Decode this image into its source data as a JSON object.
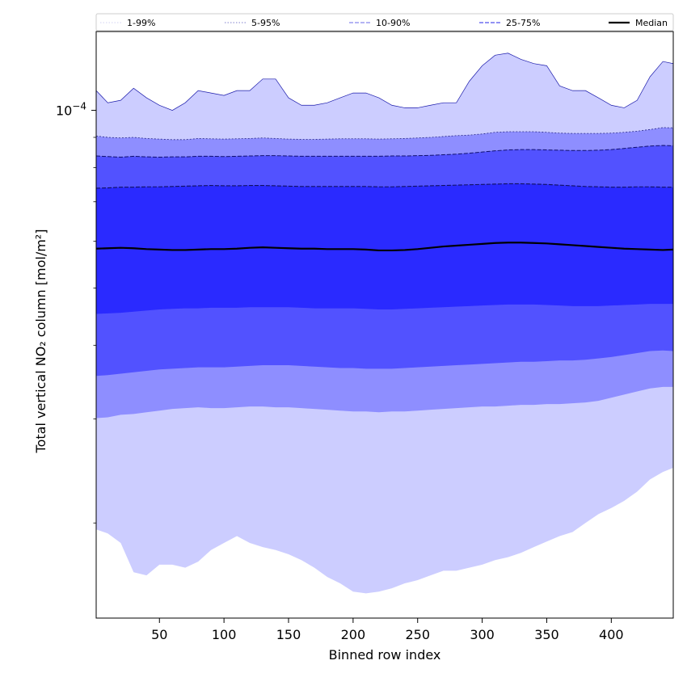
{
  "chart_data": {
    "type": "area",
    "title": "",
    "xlabel": "Binned row index",
    "ylabel": "Total vertical NO₂ column [mol/m²]",
    "y_scale": "log",
    "xlim": [
      1,
      448
    ],
    "ylim": [
      1.38e-05,
      0.000136
    ],
    "grid": false,
    "legend_position": "top (above plot, single row)",
    "x_ticks": [
      50,
      100,
      150,
      200,
      250,
      300,
      350,
      400
    ],
    "x_tick_labels": [
      "50",
      "100",
      "150",
      "200",
      "250",
      "300",
      "350",
      "400"
    ],
    "y_ticks": [
      0.0001
    ],
    "y_tick_labels_base": "10",
    "y_tick_labels_exponent": "−4",
    "y_minor_ticks": [
      2e-05,
      3e-05,
      4e-05,
      5e-05,
      6e-05,
      7e-05,
      8e-05,
      9e-05
    ],
    "legend": [
      {
        "label": "1-99%",
        "style": "dotted",
        "color": "#dadaf5"
      },
      {
        "label": "5-95%",
        "style": "dotted",
        "color": "#9a9ad8"
      },
      {
        "label": "10-90%",
        "style": "dashed",
        "color": "#8888ee"
      },
      {
        "label": "25-75%",
        "style": "dashed",
        "color": "#5050ee"
      },
      {
        "label": "Median",
        "style": "solid",
        "color": "#000000"
      }
    ],
    "colors": {
      "band_1_99": "#cccdff",
      "band_5_95": "#8e8eff",
      "band_10_90": "#5252ff",
      "band_25_75": "#2a2aff",
      "median": "#000000",
      "upper_edge_line": "#1a1aaa"
    },
    "x": [
      1,
      10,
      20,
      30,
      40,
      50,
      60,
      70,
      80,
      90,
      100,
      110,
      120,
      130,
      140,
      150,
      160,
      170,
      180,
      190,
      200,
      210,
      220,
      230,
      240,
      250,
      260,
      270,
      280,
      290,
      300,
      310,
      320,
      330,
      340,
      350,
      360,
      370,
      380,
      390,
      400,
      410,
      420,
      430,
      440,
      448
    ],
    "series": [
      {
        "name": "1-99%",
        "lower": [
          1.95e-05,
          1.92e-05,
          1.85e-05,
          1.65e-05,
          1.63e-05,
          1.7e-05,
          1.7e-05,
          1.68e-05,
          1.72e-05,
          1.8e-05,
          1.85e-05,
          1.9e-05,
          1.85e-05,
          1.82e-05,
          1.8e-05,
          1.77e-05,
          1.73e-05,
          1.68e-05,
          1.62e-05,
          1.58e-05,
          1.53e-05,
          1.52e-05,
          1.53e-05,
          1.55e-05,
          1.58e-05,
          1.6e-05,
          1.63e-05,
          1.66e-05,
          1.66e-05,
          1.68e-05,
          1.7e-05,
          1.73e-05,
          1.75e-05,
          1.78e-05,
          1.82e-05,
          1.86e-05,
          1.9e-05,
          1.93e-05,
          2e-05,
          2.07e-05,
          2.12e-05,
          2.18e-05,
          2.26e-05,
          2.37e-05,
          2.44e-05,
          2.48e-05
        ],
        "upper": [
          0.000108,
          0.000103,
          0.000104,
          0.000109,
          0.000105,
          0.000102,
          0.0001,
          0.000103,
          0.000108,
          0.000107,
          0.000106,
          0.000108,
          0.000108,
          0.000113,
          0.000113,
          0.000105,
          0.000102,
          0.000102,
          0.000103,
          0.000105,
          0.000107,
          0.000107,
          0.000105,
          0.000102,
          0.000101,
          0.000101,
          0.000102,
          0.000103,
          0.000103,
          0.000112,
          0.000119,
          0.000124,
          0.000125,
          0.000122,
          0.00012,
          0.000119,
          0.00011,
          0.000108,
          0.000108,
          0.000105,
          0.000102,
          0.000101,
          0.000104,
          0.000114,
          0.000121,
          0.00012
        ]
      },
      {
        "name": "5-95%",
        "lower": [
          3.01e-05,
          3.02e-05,
          3.05e-05,
          3.06e-05,
          3.08e-05,
          3.1e-05,
          3.12e-05,
          3.13e-05,
          3.14e-05,
          3.13e-05,
          3.13e-05,
          3.14e-05,
          3.15e-05,
          3.15e-05,
          3.14e-05,
          3.14e-05,
          3.13e-05,
          3.12e-05,
          3.11e-05,
          3.1e-05,
          3.09e-05,
          3.09e-05,
          3.08e-05,
          3.09e-05,
          3.09e-05,
          3.1e-05,
          3.11e-05,
          3.12e-05,
          3.13e-05,
          3.14e-05,
          3.15e-05,
          3.15e-05,
          3.16e-05,
          3.17e-05,
          3.17e-05,
          3.18e-05,
          3.18e-05,
          3.19e-05,
          3.2e-05,
          3.22e-05,
          3.26e-05,
          3.3e-05,
          3.34e-05,
          3.38e-05,
          3.4e-05,
          3.4e-05
        ],
        "upper": [
          9.05e-05,
          9e-05,
          8.98e-05,
          9e-05,
          8.96e-05,
          8.94e-05,
          8.92e-05,
          8.92e-05,
          8.96e-05,
          8.95e-05,
          8.94e-05,
          8.95e-05,
          8.96e-05,
          8.98e-05,
          8.96e-05,
          8.94e-05,
          8.93e-05,
          8.93e-05,
          8.94e-05,
          8.95e-05,
          8.95e-05,
          8.95e-05,
          8.94e-05,
          8.95e-05,
          8.96e-05,
          8.98e-05,
          9e-05,
          9.03e-05,
          9.06e-05,
          9.08e-05,
          9.12e-05,
          9.18e-05,
          9.2e-05,
          9.2e-05,
          9.2e-05,
          9.18e-05,
          9.15e-05,
          9.14e-05,
          9.14e-05,
          9.14e-05,
          9.15e-05,
          9.18e-05,
          9.22e-05,
          9.28e-05,
          9.35e-05,
          9.34e-05
        ]
      },
      {
        "name": "10-90%",
        "lower": [
          3.55e-05,
          3.56e-05,
          3.58e-05,
          3.6e-05,
          3.62e-05,
          3.64e-05,
          3.65e-05,
          3.66e-05,
          3.67e-05,
          3.67e-05,
          3.67e-05,
          3.68e-05,
          3.69e-05,
          3.7e-05,
          3.7e-05,
          3.7e-05,
          3.69e-05,
          3.68e-05,
          3.67e-05,
          3.66e-05,
          3.66e-05,
          3.65e-05,
          3.65e-05,
          3.65e-05,
          3.66e-05,
          3.67e-05,
          3.68e-05,
          3.69e-05,
          3.7e-05,
          3.71e-05,
          3.72e-05,
          3.73e-05,
          3.74e-05,
          3.75e-05,
          3.75e-05,
          3.76e-05,
          3.77e-05,
          3.77e-05,
          3.78e-05,
          3.8e-05,
          3.82e-05,
          3.85e-05,
          3.88e-05,
          3.91e-05,
          3.92e-05,
          3.91e-05
        ],
        "upper": [
          8.37e-05,
          8.35e-05,
          8.33e-05,
          8.36e-05,
          8.34e-05,
          8.33e-05,
          8.34e-05,
          8.34e-05,
          8.36e-05,
          8.36e-05,
          8.35e-05,
          8.36e-05,
          8.37e-05,
          8.38e-05,
          8.38e-05,
          8.37e-05,
          8.36e-05,
          8.36e-05,
          8.36e-05,
          8.36e-05,
          8.36e-05,
          8.36e-05,
          8.36e-05,
          8.37e-05,
          8.37e-05,
          8.38e-05,
          8.39e-05,
          8.41e-05,
          8.43e-05,
          8.46e-05,
          8.5e-05,
          8.54e-05,
          8.57e-05,
          8.58e-05,
          8.58e-05,
          8.57e-05,
          8.56e-05,
          8.55e-05,
          8.55e-05,
          8.56e-05,
          8.58e-05,
          8.62e-05,
          8.66e-05,
          8.7e-05,
          8.72e-05,
          8.71e-05
        ]
      },
      {
        "name": "25-75%",
        "lower": [
          4.52e-05,
          4.53e-05,
          4.54e-05,
          4.56e-05,
          4.58e-05,
          4.6e-05,
          4.61e-05,
          4.62e-05,
          4.62e-05,
          4.63e-05,
          4.63e-05,
          4.63e-05,
          4.64e-05,
          4.64e-05,
          4.64e-05,
          4.64e-05,
          4.63e-05,
          4.62e-05,
          4.62e-05,
          4.62e-05,
          4.62e-05,
          4.61e-05,
          4.6e-05,
          4.6e-05,
          4.61e-05,
          4.62e-05,
          4.63e-05,
          4.64e-05,
          4.65e-05,
          4.66e-05,
          4.67e-05,
          4.68e-05,
          4.69e-05,
          4.69e-05,
          4.69e-05,
          4.68e-05,
          4.67e-05,
          4.66e-05,
          4.66e-05,
          4.66e-05,
          4.67e-05,
          4.68e-05,
          4.69e-05,
          4.7e-05,
          4.7e-05,
          4.7e-05
        ],
        "upper": [
          7.38e-05,
          7.39e-05,
          7.41e-05,
          7.41e-05,
          7.42e-05,
          7.42e-05,
          7.43e-05,
          7.44e-05,
          7.45e-05,
          7.46e-05,
          7.45e-05,
          7.45e-05,
          7.46e-05,
          7.46e-05,
          7.45e-05,
          7.44e-05,
          7.43e-05,
          7.43e-05,
          7.43e-05,
          7.43e-05,
          7.43e-05,
          7.43e-05,
          7.42e-05,
          7.42e-05,
          7.43e-05,
          7.44e-05,
          7.45e-05,
          7.46e-05,
          7.47e-05,
          7.48e-05,
          7.49e-05,
          7.5e-05,
          7.51e-05,
          7.51e-05,
          7.5e-05,
          7.49e-05,
          7.47e-05,
          7.45e-05,
          7.43e-05,
          7.42e-05,
          7.41e-05,
          7.41e-05,
          7.42e-05,
          7.42e-05,
          7.41e-05,
          7.41e-05
        ]
      },
      {
        "name": "Median",
        "values": [
          5.83e-05,
          5.84e-05,
          5.85e-05,
          5.84e-05,
          5.82e-05,
          5.81e-05,
          5.8e-05,
          5.8e-05,
          5.81e-05,
          5.82e-05,
          5.82e-05,
          5.83e-05,
          5.85e-05,
          5.86e-05,
          5.85e-05,
          5.84e-05,
          5.83e-05,
          5.83e-05,
          5.82e-05,
          5.82e-05,
          5.82e-05,
          5.81e-05,
          5.79e-05,
          5.79e-05,
          5.8e-05,
          5.82e-05,
          5.85e-05,
          5.88e-05,
          5.9e-05,
          5.92e-05,
          5.94e-05,
          5.96e-05,
          5.97e-05,
          5.97e-05,
          5.96e-05,
          5.95e-05,
          5.93e-05,
          5.91e-05,
          5.89e-05,
          5.87e-05,
          5.85e-05,
          5.83e-05,
          5.82e-05,
          5.81e-05,
          5.8e-05,
          5.81e-05
        ]
      }
    ]
  }
}
